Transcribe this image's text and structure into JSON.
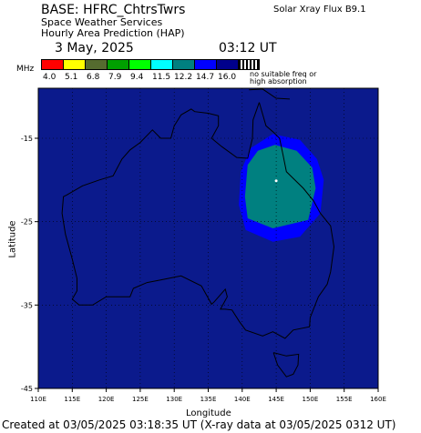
{
  "header": {
    "base": "BASE: HFRC_ChtrsTwrs",
    "agency": "Space Weather Services",
    "product": "Hourly Area Prediction (HAP)",
    "date": "3 May, 2025",
    "time": "03:12 UT",
    "xray": "Solar Xray Flux B9.1"
  },
  "legend": {
    "unit": "MHz",
    "swatches": [
      {
        "color": "#ff0000",
        "label": "4.0"
      },
      {
        "color": "#ffff00",
        "label": "5.1"
      },
      {
        "color": "#556b2f",
        "label": "6.8"
      },
      {
        "color": "#00a000",
        "label": "7.9"
      },
      {
        "color": "#00ff00",
        "label": "9.4"
      },
      {
        "color": "#00ffff",
        "label": "11.5"
      },
      {
        "color": "#008080",
        "label": "12.2"
      },
      {
        "color": "#0000ff",
        "label": "14.7"
      },
      {
        "color": "#00008b",
        "label": "16.0"
      }
    ],
    "nofreq_line1": "no suitable freq or",
    "nofreq_line2": "high absorption"
  },
  "axes": {
    "xlabel": "Longitude",
    "ylabel": "Latitude",
    "x_ticks": [
      "110E",
      "115E",
      "120E",
      "125E",
      "130E",
      "135E",
      "140E",
      "145E",
      "150E",
      "155E",
      "160E"
    ],
    "y_ticks": [
      "-15",
      "-25",
      "-35",
      "-45"
    ]
  },
  "colors": {
    "background": "#0b1a8c",
    "zone_outer": "#0000ff",
    "zone_inner": "#008080",
    "coast": "#000000"
  },
  "footer": "Created at 03/05/2025 03:18:35 UT (X-ray data at 03/05/2025 0312 UT)"
}
